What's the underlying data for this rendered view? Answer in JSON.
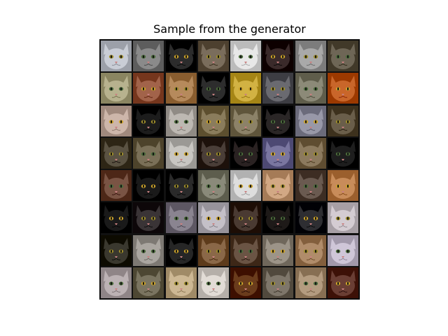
{
  "figure": {
    "title": "Sample from the generator"
  },
  "grid": {
    "rows": 8,
    "cols": 8,
    "tiles": [
      [
        "#c9cdd6",
        "#8a8a8a",
        "#2c2c2c",
        "#7a6d5c",
        "#e8e8e8",
        "#3a2a2a",
        "#a9a9a9",
        "#6e6656"
      ],
      [
        "#b7b28e",
        "#a2634a",
        "#b68a5c",
        "#2d2d2d",
        "#d2b243",
        "#6a6a70",
        "#8c8a78",
        "#c9662a"
      ],
      [
        "#cdb6aa",
        "#1c1c1c",
        "#bdb8b2",
        "#8a7c5c",
        "#8c8268",
        "#2a2626",
        "#9898a8",
        "#6a5e4a"
      ],
      [
        "#5a5242",
        "#7a7058",
        "#c8c6c2",
        "#4a3e38",
        "#2a2222",
        "#7a76a0",
        "#8c7a5e",
        "#1e1e1e"
      ],
      [
        "#7a5444",
        "#1a1a1a",
        "#2a2a2a",
        "#8a8a7a",
        "#dedede",
        "#d2a884",
        "#6a5a50",
        "#c88c5a"
      ],
      [
        "#1a1a1a",
        "#3a3436",
        "#8a8490",
        "#c4c0c8",
        "#4a3a32",
        "#1e1a18",
        "#2e2e32",
        "#d4ccd2"
      ],
      [
        "#3a382e",
        "#aaa6a0",
        "#262626",
        "#8a6848",
        "#6a5444",
        "#9c9488",
        "#b08c6a",
        "#cfc6d8"
      ],
      [
        "#bcb2b4",
        "#7a7460",
        "#cdb894",
        "#e2dcd6",
        "#6a3c1c",
        "#7e766a",
        "#b49c80",
        "#6a3e34"
      ]
    ]
  }
}
